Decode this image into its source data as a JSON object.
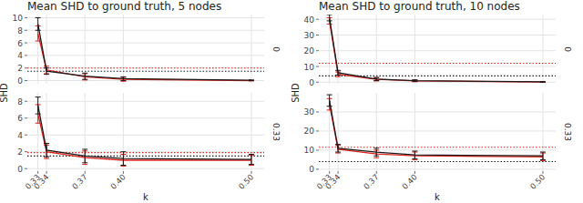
{
  "chart_data": [
    {
      "type": "line",
      "title": "Mean SHD to ground truth, 5 nodes",
      "x_label": "k",
      "y_label": "SHD",
      "grid": true,
      "x": [
        0.3333,
        0.34,
        0.37,
        0.4,
        0.5
      ],
      "xlim": [
        0.325,
        0.51
      ],
      "xticks": [
        {
          "value": 0.3333,
          "label": "0.33"
        },
        {
          "value": 0.34,
          "label": "0.34"
        },
        {
          "value": 0.37,
          "label": "0.37"
        },
        {
          "value": 0.4,
          "label": "0.40"
        },
        {
          "value": 0.5,
          "label": "0.50"
        }
      ],
      "facets": [
        {
          "label": "0",
          "ylim": [
            -0.5,
            10.5
          ],
          "yticks": [
            0,
            2,
            4,
            6,
            8,
            10
          ],
          "reference_lines": [
            {
              "color": "#e0201b",
              "value": 2.0
            },
            {
              "color": "#1a1a1a",
              "value": 1.5
            }
          ],
          "series": [
            {
              "color": "#e0201b",
              "values": [
                7.5,
                1.7,
                0.6,
                0.2,
                0.0
              ],
              "errors": [
                1.2,
                0.6,
                0.5,
                0.3,
                0.05
              ]
            },
            {
              "color": "#1a1a1a",
              "values": [
                9.0,
                1.5,
                0.7,
                0.3,
                0.05
              ],
              "errors": [
                1.0,
                0.5,
                0.5,
                0.3,
                0.05
              ]
            }
          ]
        },
        {
          "label": "0.33",
          "ylim": [
            -0.3,
            9
          ],
          "yticks": [
            0,
            2,
            4,
            6,
            8
          ],
          "reference_lines": [
            {
              "color": "#e0201b",
              "value": 1.9
            },
            {
              "color": "#1a1a1a",
              "value": 1.5
            }
          ],
          "series": [
            {
              "color": "#e0201b",
              "values": [
                6.5,
                2.0,
                1.3,
                1.0,
                1.0
              ],
              "errors": [
                1.1,
                0.8,
                0.8,
                0.7,
                0.6
              ]
            },
            {
              "color": "#1a1a1a",
              "values": [
                7.5,
                2.2,
                1.5,
                1.2,
                1.1
              ],
              "errors": [
                1.0,
                0.8,
                0.8,
                0.8,
                0.6
              ]
            }
          ]
        }
      ]
    },
    {
      "type": "line",
      "title": "Mean SHD to ground truth, 10 nodes",
      "x_label": "k",
      "y_label": "SHD",
      "grid": true,
      "x": [
        0.3333,
        0.34,
        0.37,
        0.4,
        0.5
      ],
      "xlim": [
        0.325,
        0.51
      ],
      "xticks": [
        {
          "value": 0.3333,
          "label": "0.33"
        },
        {
          "value": 0.34,
          "label": "0.34"
        },
        {
          "value": 0.37,
          "label": "0.37"
        },
        {
          "value": 0.4,
          "label": "0.40"
        },
        {
          "value": 0.5,
          "label": "0.50"
        }
      ],
      "facets": [
        {
          "label": "0",
          "ylim": [
            -1,
            43
          ],
          "yticks": [
            0,
            10,
            20,
            30,
            40
          ],
          "reference_lines": [
            {
              "color": "#e0201b",
              "value": 12
            },
            {
              "color": "#1a1a1a",
              "value": 4
            }
          ],
          "series": [
            {
              "color": "#e0201b",
              "values": [
                39,
                5,
                1.8,
                0.8,
                0.1
              ],
              "errors": [
                2,
                1.5,
                1,
                0.5,
                0.2
              ]
            },
            {
              "color": "#1a1a1a",
              "values": [
                41,
                6,
                2,
                1,
                0.2
              ],
              "errors": [
                2,
                1.5,
                1,
                0.5,
                0.2
              ]
            }
          ]
        },
        {
          "label": "0.33",
          "ylim": [
            -1,
            40
          ],
          "yticks": [
            0,
            10,
            20,
            30
          ],
          "reference_lines": [
            {
              "color": "#e0201b",
              "value": 11.5
            },
            {
              "color": "#1a1a1a",
              "value": 4
            }
          ],
          "series": [
            {
              "color": "#e0201b",
              "values": [
                34,
                10.5,
                8,
                7,
                6.5
              ],
              "errors": [
                3,
                2,
                2,
                2,
                2
              ]
            },
            {
              "color": "#1a1a1a",
              "values": [
                36,
                11,
                9,
                7.5,
                7
              ],
              "errors": [
                3,
                2,
                2,
                2,
                2
              ]
            }
          ]
        }
      ]
    }
  ]
}
